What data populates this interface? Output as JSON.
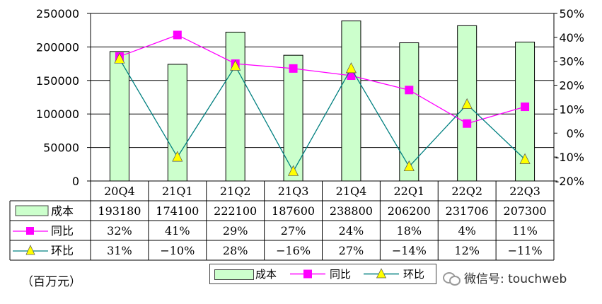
{
  "chart_data": {
    "type": "bar",
    "categories": [
      "20Q4",
      "21Q1",
      "21Q2",
      "21Q3",
      "21Q4",
      "22Q1",
      "22Q2",
      "22Q3"
    ],
    "series": [
      {
        "name": "成本",
        "kind": "bar",
        "axis": "left",
        "values": [
          193180,
          174100,
          222100,
          187600,
          238800,
          206200,
          231706,
          207300
        ],
        "color": "#ccffcc"
      },
      {
        "name": "同比",
        "kind": "line",
        "axis": "right",
        "values": [
          32,
          41,
          29,
          27,
          24,
          18,
          4,
          11
        ],
        "color": "#ff00ff",
        "marker": "square"
      },
      {
        "name": "环比",
        "kind": "line",
        "axis": "right",
        "values": [
          31,
          -10,
          28,
          -16,
          27,
          -14,
          12,
          -11
        ],
        "color": "#008080",
        "marker": "triangle",
        "marker_color": "#ffff00"
      }
    ],
    "left_axis": {
      "min": 0,
      "max": 250000,
      "ticks": [
        "0",
        "50000",
        "100000",
        "150000",
        "200000",
        "250000"
      ]
    },
    "right_axis": {
      "min": -20,
      "max": 50,
      "ticks": [
        "-20%",
        "-10%",
        "0%",
        "10%",
        "20%",
        "30%",
        "40%",
        "50%"
      ]
    },
    "table": {
      "rows": [
        {
          "label": "成本",
          "values": [
            "193180",
            "174100",
            "222100",
            "187600",
            "238800",
            "206200",
            "231706",
            "207300"
          ]
        },
        {
          "label": "同比",
          "values": [
            "32%",
            "41%",
            "29%",
            "27%",
            "24%",
            "18%",
            "4%",
            "11%"
          ]
        },
        {
          "label": "环比",
          "values": [
            "31%",
            "−10%",
            "28%",
            "−16%",
            "27%",
            "−14%",
            "12%",
            "−11%"
          ]
        }
      ]
    },
    "legend": {
      "position": "bottom",
      "items": [
        "成本",
        "同比",
        "环比"
      ]
    },
    "grid": true
  },
  "unit_label": "（百万元）",
  "watermark": "微信号: touchweb"
}
